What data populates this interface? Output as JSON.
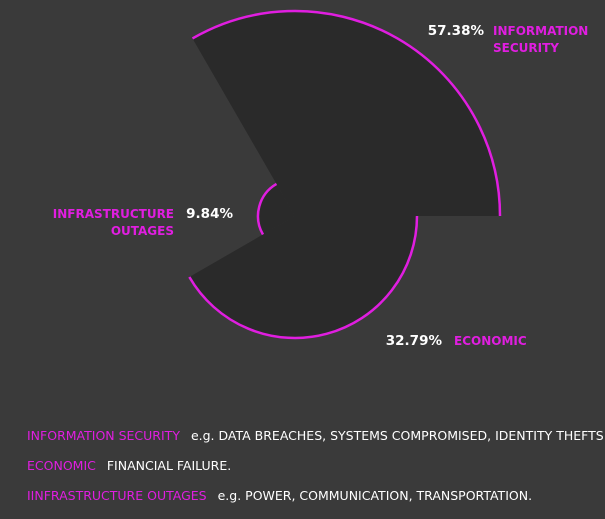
{
  "chart_data": {
    "type": "pie",
    "variant": "polar-area",
    "colors": {
      "background": "#3a3a3a",
      "slice": "#2a2a2a",
      "accent": "#e01ee0",
      "text": "#ffffff"
    },
    "slices": [
      {
        "name": "INFORMATION SECURITY",
        "label_lines": [
          "INFORMATION",
          "SECURITY"
        ],
        "value": 57.38,
        "value_label": "57.38%"
      },
      {
        "name": "ECONOMIC",
        "label_lines": [
          "ECONOMIC"
        ],
        "value": 32.79,
        "value_label": "32.79%"
      },
      {
        "name": "INFRASTRUCTURE OUTAGES",
        "label_lines": [
          "INFRASTRUCTURE",
          "OUTAGES"
        ],
        "value": 9.84,
        "value_label": "9.84%"
      }
    ]
  },
  "legend": [
    {
      "key": "INFORMATION SECURITY",
      "desc": "e.g. DATA BREACHES, SYSTEMS COMPROMISED, IDENTITY THEFTS."
    },
    {
      "key": "ECONOMIC",
      "desc": "FINANCIAL FAILURE."
    },
    {
      "key": "IINFRASTRUCTURE OUTAGES",
      "desc": "e.g. POWER, COMMUNICATION, TRANSPORTATION."
    }
  ]
}
